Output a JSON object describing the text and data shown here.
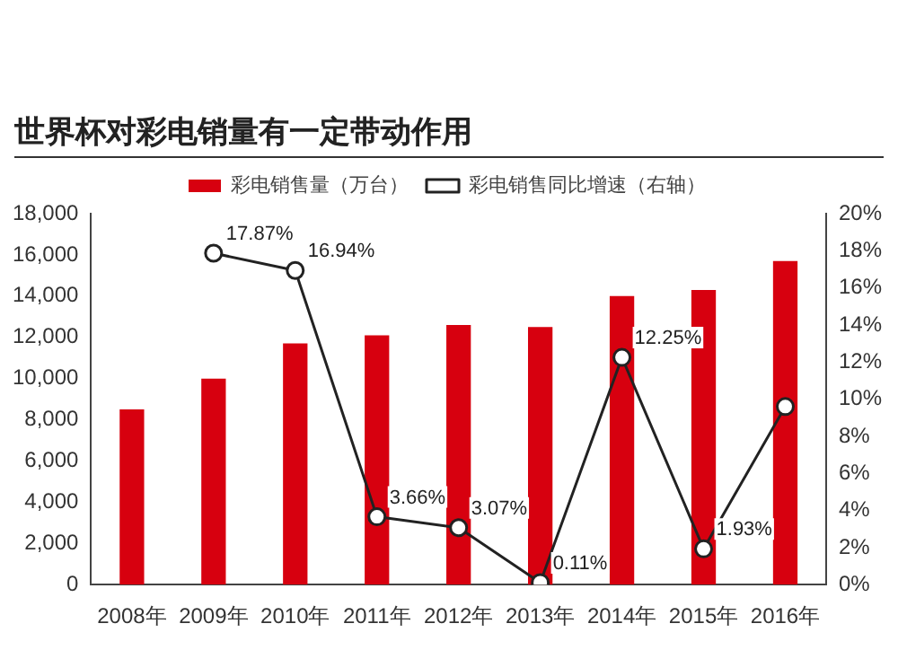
{
  "chart_data": {
    "type": "bar",
    "title": "世界杯对彩电销量有一定带动作用",
    "categories": [
      "2008年",
      "2009年",
      "2010年",
      "2011年",
      "2012年",
      "2013年",
      "2014年",
      "2015年",
      "2016年"
    ],
    "series": [
      {
        "name": "彩电销售量（万台）",
        "color": "#d7000f",
        "values": [
          8500,
          10000,
          11700,
          12100,
          12600,
          12500,
          14000,
          14300,
          15700
        ]
      },
      {
        "name": "彩电销售同比增速（右轴）",
        "type": "line",
        "axis": "y2",
        "color": "#222222",
        "values": [
          null,
          17.87,
          16.94,
          3.66,
          3.07,
          0.11,
          12.25,
          1.93,
          9.6
        ],
        "value_labels": [
          null,
          "17.87%",
          "16.94%",
          "3.66%",
          "3.07%",
          "0.11%",
          "12.25%",
          "1.93%",
          null
        ]
      }
    ],
    "ylim": [
      0,
      18000
    ],
    "yticks": [
      {
        "value": 0,
        "label": "0"
      },
      {
        "value": 2000,
        "label": "2,000"
      },
      {
        "value": 4000,
        "label": "4,000"
      },
      {
        "value": 6000,
        "label": "6,000"
      },
      {
        "value": 8000,
        "label": "8,000"
      },
      {
        "value": 10000,
        "label": "10,000"
      },
      {
        "value": 12000,
        "label": "12,000"
      },
      {
        "value": 14000,
        "label": "14,000"
      },
      {
        "value": 16000,
        "label": "16,000"
      },
      {
        "value": 18000,
        "label": "18,000"
      }
    ],
    "y2lim": [
      0,
      20
    ],
    "y2ticks": [
      {
        "value": 0,
        "label": "0%"
      },
      {
        "value": 2,
        "label": "2%"
      },
      {
        "value": 4,
        "label": "4%"
      },
      {
        "value": 6,
        "label": "6%"
      },
      {
        "value": 8,
        "label": "8%"
      },
      {
        "value": 10,
        "label": "10%"
      },
      {
        "value": 12,
        "label": "12%"
      },
      {
        "value": 14,
        "label": "14%"
      },
      {
        "value": 16,
        "label": "16%"
      },
      {
        "value": 18,
        "label": "18%"
      },
      {
        "value": 20,
        "label": "20%"
      }
    ],
    "grid": false,
    "legend": "top",
    "marker": "circle"
  }
}
